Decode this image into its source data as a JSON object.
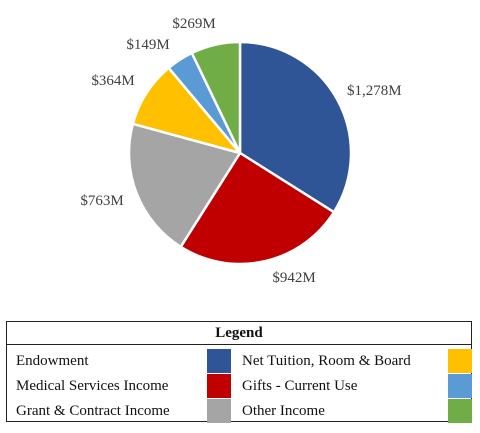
{
  "chart_data": {
    "type": "pie",
    "slices": [
      {
        "name": "Endowment",
        "value": 1278,
        "label": "$1,278M",
        "color": "#2f5597"
      },
      {
        "name": "Medical Services Income",
        "value": 942,
        "label": "$942M",
        "color": "#c00000"
      },
      {
        "name": "Grant & Contract Income",
        "value": 763,
        "label": "$763M",
        "color": "#a5a5a5"
      },
      {
        "name": "Net Tuition, Room & Board",
        "value": 364,
        "label": "$364M",
        "color": "#ffc000"
      },
      {
        "name": "Gifts - Current Use",
        "value": 149,
        "label": "$149M",
        "color": "#5b9bd5"
      },
      {
        "name": "Other Income",
        "value": 269,
        "label": "$269M",
        "color": "#70ad47"
      }
    ],
    "legend_placement": "bottom",
    "legend_title": "Legend"
  }
}
